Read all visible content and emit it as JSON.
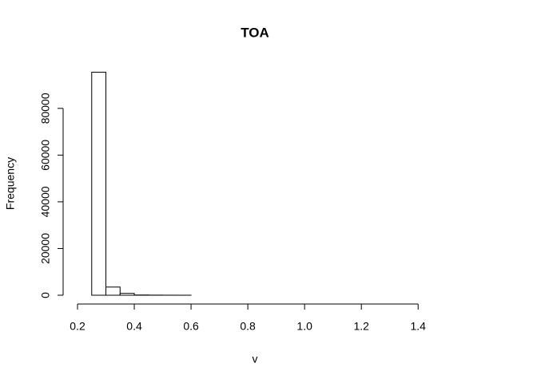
{
  "chart_data": {
    "type": "histogram",
    "title": "TOA",
    "x_label": "v",
    "y_label": "Frequency",
    "bins": [
      0.2,
      0.25,
      0.3,
      0.35,
      0.4,
      0.45,
      0.5,
      0.55,
      0.6,
      0.65,
      0.7,
      0.75,
      0.8,
      0.85,
      0.9,
      0.95,
      1.0,
      1.05,
      1.1,
      1.15,
      1.2,
      1.25,
      1.3,
      1.35,
      1.4,
      1.45
    ],
    "counts": [
      0,
      95500,
      3500,
      800,
      100,
      50,
      20,
      10,
      0,
      0,
      0,
      0,
      0,
      0,
      0,
      0,
      0,
      0,
      0,
      0,
      0,
      0,
      0,
      0,
      0
    ],
    "color": "#ffffff",
    "xlim": [
      0.2,
      1.45
    ],
    "ylim": [
      0,
      96000
    ],
    "xticks": [
      0.2,
      0.4,
      0.6,
      0.8,
      {
        "value": 1,
        "label": "1.0"
      },
      1.2,
      1.4
    ],
    "yticks": [
      0,
      20000,
      40000,
      60000,
      80000
    ],
    "grid": false
  }
}
